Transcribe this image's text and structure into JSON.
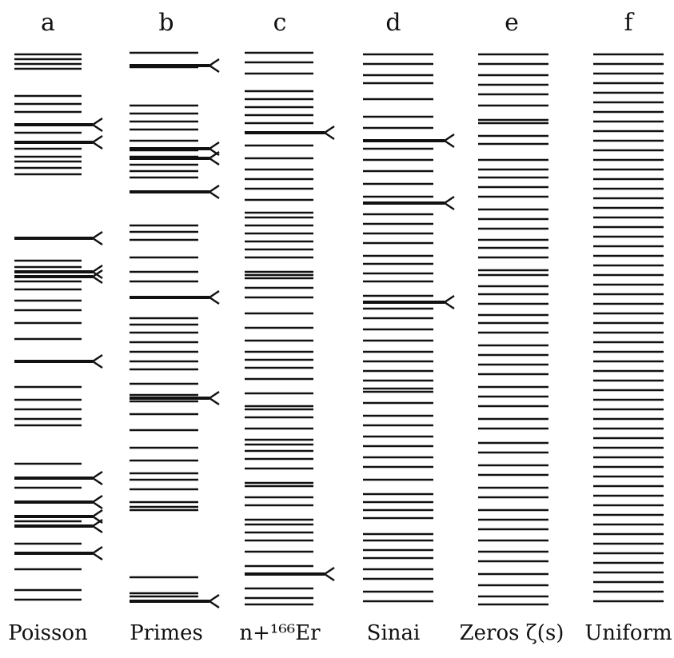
{
  "figure": {
    "ink_color": "#111111",
    "background": "#ffffff",
    "columns": [
      {
        "id": "a",
        "letter": "a",
        "label": "Poisson",
        "levels": [
          68,
          74,
          80,
          86,
          120,
          130,
          140,
          156,
          166,
          178,
          186,
          196,
          202,
          210,
          218,
          298,
          326,
          334,
          340,
          346,
          352,
          362,
          376,
          388,
          404,
          424,
          452,
          484,
          500,
          512,
          524,
          532,
          580,
          598,
          610,
          628,
          646,
          652,
          658,
          680,
          692,
          712,
          738,
          750
        ],
        "flagged": [
          156,
          178,
          298,
          340,
          346,
          452,
          598,
          628,
          646,
          658,
          692
        ]
      },
      {
        "id": "b",
        "letter": "b",
        "label": "Primes",
        "levels": [
          66,
          82,
          84,
          132,
          142,
          152,
          162,
          176,
          186,
          188,
          196,
          198,
          206,
          214,
          222,
          240,
          282,
          290,
          300,
          322,
          340,
          352,
          372,
          398,
          406,
          416,
          428,
          440,
          452,
          462,
          480,
          494,
          498,
          502,
          518,
          538,
          560,
          576,
          592,
          600,
          612,
          628,
          634,
          638,
          722,
          742,
          746,
          752
        ],
        "flagged": [
          82,
          186,
          198,
          240,
          372,
          498,
          752
        ]
      },
      {
        "id": "c",
        "letter": "c",
        "label": "n+¹⁶⁶Er",
        "levels": [
          66,
          78,
          92,
          114,
          124,
          134,
          144,
          154,
          166,
          182,
          198,
          212,
          224,
          236,
          250,
          266,
          272,
          282,
          292,
          302,
          312,
          322,
          340,
          344,
          348,
          360,
          372,
          392,
          410,
          426,
          440,
          450,
          460,
          474,
          492,
          508,
          512,
          522,
          536,
          550,
          556,
          564,
          574,
          586,
          604,
          608,
          622,
          632,
          650,
          656,
          666,
          676,
          690,
          708,
          718,
          736,
          748,
          756
        ],
        "flagged": [
          166,
          718
        ]
      },
      {
        "id": "d",
        "letter": "d",
        "label": "Sinai",
        "levels": [
          68,
          80,
          94,
          104,
          124,
          146,
          160,
          176,
          186,
          200,
          214,
          230,
          246,
          254,
          268,
          280,
          292,
          304,
          320,
          330,
          342,
          352,
          370,
          378,
          386,
          398,
          412,
          426,
          440,
          452,
          464,
          476,
          486,
          490,
          504,
          520,
          532,
          546,
          558,
          572,
          584,
          600,
          618,
          628,
          638,
          648,
          668,
          676,
          688,
          698,
          712,
          724,
          740,
          752
        ],
        "flagged": [
          176,
          254,
          378
        ]
      },
      {
        "id": "e",
        "letter": "e",
        "label": "Zeros ζ(s)",
        "levels": [
          68,
          80,
          94,
          106,
          118,
          132,
          150,
          154,
          170,
          180,
          200,
          212,
          222,
          234,
          246,
          262,
          274,
          286,
          300,
          310,
          322,
          338,
          344,
          358,
          368,
          380,
          394,
          404,
          416,
          432,
          444,
          456,
          468,
          484,
          496,
          508,
          524,
          536,
          554,
          566,
          582,
          594,
          610,
          622,
          638,
          650,
          662,
          676,
          690,
          702,
          718,
          732,
          746,
          756
        ],
        "flagged": []
      },
      {
        "id": "f",
        "letter": "f",
        "label": "Uniform",
        "levels": [
          68,
          80,
          92,
          104,
          116,
          128,
          140,
          152,
          164,
          176,
          188,
          200,
          212,
          224,
          236,
          248,
          260,
          272,
          284,
          296,
          308,
          320,
          332,
          344,
          356,
          368,
          380,
          392,
          404,
          416,
          428,
          440,
          452,
          464,
          476,
          488,
          500,
          512,
          524,
          536,
          548,
          560,
          572,
          584,
          596,
          608,
          620,
          632,
          644,
          656,
          668,
          680,
          692,
          704,
          716,
          728,
          740,
          752
        ],
        "flagged": []
      }
    ]
  }
}
